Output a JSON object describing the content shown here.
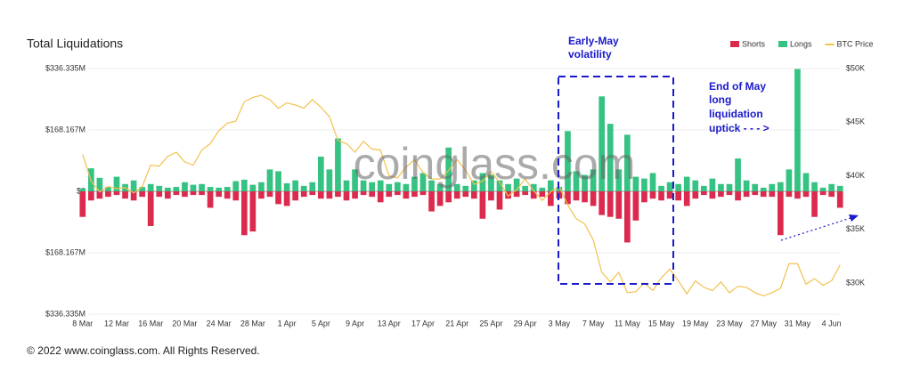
{
  "chart_data": {
    "type": "bar",
    "title": "Total Liquidations",
    "watermark": "coinglass.com",
    "categories": [
      "8 Mar",
      null,
      null,
      null,
      "12 Mar",
      null,
      null,
      null,
      "16 Mar",
      null,
      null,
      null,
      "20 Mar",
      null,
      null,
      null,
      "24 Mar",
      null,
      null,
      null,
      "28 Mar",
      null,
      null,
      null,
      "1 Apr",
      null,
      null,
      null,
      "5 Apr",
      null,
      null,
      null,
      "9 Apr",
      null,
      null,
      null,
      "13 Apr",
      null,
      null,
      null,
      "17 Apr",
      null,
      null,
      null,
      "21 Apr",
      null,
      null,
      null,
      "25 Apr",
      null,
      null,
      null,
      "29 Apr",
      null,
      null,
      null,
      "3 May",
      null,
      null,
      null,
      "7 May",
      null,
      null,
      null,
      "11 May",
      null,
      null,
      null,
      "15 May",
      null,
      null,
      null,
      "19 May",
      null,
      null,
      null,
      "23 May",
      null,
      null,
      null,
      "27 May",
      null,
      null,
      null,
      "31 May",
      null,
      null,
      null,
      "4 Jun",
      null
    ],
    "series": [
      {
        "name": "Shorts",
        "color": "#dc2a4e",
        "values": [
          -70,
          -25,
          -20,
          -15,
          -10,
          -20,
          -25,
          -15,
          -95,
          -15,
          -20,
          -10,
          -15,
          -10,
          -10,
          -45,
          -15,
          -20,
          -25,
          -120,
          -110,
          -20,
          -15,
          -35,
          -40,
          -25,
          -15,
          -10,
          -20,
          -20,
          -15,
          -25,
          -20,
          -10,
          -15,
          -30,
          -15,
          -10,
          -20,
          -15,
          -10,
          -55,
          -40,
          -30,
          -20,
          -15,
          -20,
          -75,
          -25,
          -50,
          -20,
          -15,
          -10,
          -20,
          -15,
          -40,
          -20,
          -35,
          -25,
          -30,
          -40,
          -65,
          -70,
          -75,
          -140,
          -80,
          -30,
          -20,
          -25,
          -20,
          -25,
          -40,
          -20,
          -10,
          -20,
          -15,
          -10,
          -25,
          -15,
          -10,
          -15,
          -15,
          -120,
          -15,
          -20,
          -15,
          -70,
          -10,
          -15,
          -45
        ]
      },
      {
        "name": "Longs",
        "color": "#35c282",
        "values": [
          8,
          63,
          37,
          12,
          40,
          20,
          30,
          12,
          20,
          15,
          10,
          12,
          25,
          18,
          20,
          12,
          10,
          12,
          28,
          32,
          18,
          25,
          60,
          55,
          22,
          30,
          15,
          25,
          95,
          60,
          145,
          30,
          60,
          30,
          25,
          30,
          20,
          25,
          20,
          40,
          50,
          30,
          20,
          120,
          20,
          15,
          30,
          50,
          45,
          30,
          20,
          35,
          15,
          20,
          10,
          30,
          12,
          165,
          55,
          45,
          60,
          260,
          185,
          60,
          155,
          40,
          35,
          50,
          15,
          25,
          20,
          40,
          30,
          15,
          35,
          20,
          20,
          90,
          30,
          20,
          10,
          20,
          25,
          60,
          335,
          50,
          25,
          10,
          20,
          15
        ]
      },
      {
        "name": "BTC Price",
        "color": "#f3c14e",
        "type": "line",
        "axis": "y2",
        "values": [
          42000,
          39500,
          38500,
          39000,
          38800,
          38900,
          38400,
          39000,
          41000,
          40900,
          41800,
          42200,
          41300,
          41000,
          42400,
          43000,
          44200,
          44900,
          45100,
          46900,
          47300,
          47500,
          47100,
          46300,
          46800,
          46600,
          46300,
          47100,
          46400,
          45500,
          43300,
          43000,
          42200,
          43200,
          42500,
          42400,
          40000,
          39800,
          40800,
          41500,
          40300,
          39700,
          39700,
          40500,
          41500,
          40500,
          39200,
          39500,
          40400,
          39400,
          38100,
          38700,
          39700,
          38600,
          37700,
          38500,
          39000,
          37300,
          36000,
          35500,
          34000,
          31000,
          30100,
          31000,
          29100,
          29200,
          30000,
          29300,
          30500,
          31300,
          30200,
          29000,
          30200,
          29600,
          29300,
          30100,
          29100,
          29700,
          29600,
          29100,
          28800,
          29100,
          29500,
          31800,
          31800,
          29900,
          30400,
          29800,
          30200,
          31700
        ]
      }
    ],
    "ylim": [
      -336.335,
      336.335
    ],
    "yticks": [
      {
        "value": 336.335,
        "label": "$336.335M"
      },
      {
        "value": 168.167,
        "label": "$168.167M"
      },
      {
        "value": 0,
        "label": "$0"
      },
      {
        "value": -168.167,
        "label": "$168.167M"
      },
      {
        "value": -336.335,
        "label": "$336.335M"
      }
    ],
    "y2lim": [
      27100,
      50000
    ],
    "y2ticks": [
      {
        "value": 50000,
        "label": "$50K"
      },
      {
        "value": 45000,
        "label": "$45K"
      },
      {
        "value": 40000,
        "label": "$40K"
      },
      {
        "value": 35000,
        "label": "$35K"
      },
      {
        "value": 30000,
        "label": "$30K"
      }
    ],
    "grid": true,
    "legend": "top-right",
    "annotations": [
      {
        "lines": [
          "Early-May",
          "volatility"
        ]
      },
      {
        "lines": [
          "End of May",
          "long",
          "liquidation",
          "uptick - - - >"
        ]
      }
    ]
  },
  "footer": "© 2022 www.coinglass.com. All Rights Reserved."
}
